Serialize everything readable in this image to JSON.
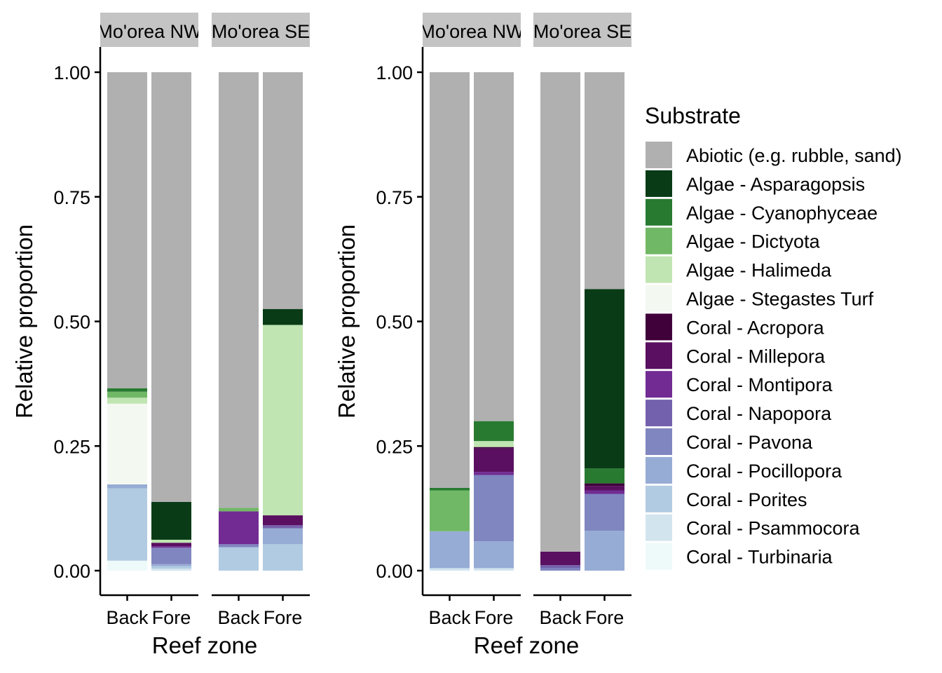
{
  "chart_data": {
    "type": "bar",
    "stacked": true,
    "xlabel": "Reef zone",
    "ylabel": "Relative proportion",
    "ylim": [
      0,
      1
    ],
    "yticks": [
      "0.00",
      "0.25",
      "0.50",
      "0.75",
      "1.00"
    ],
    "categories": [
      "Back",
      "Fore"
    ],
    "legend": {
      "title": "Substrate",
      "position": "right",
      "entries": [
        {
          "name": "Abiotic (e.g. rubble, sand)",
          "color": "#b0b0b0"
        },
        {
          "name": "Algae - Asparagopsis",
          "color": "#083b16"
        },
        {
          "name": "Algae - Cyanophyceae",
          "color": "#287a31"
        },
        {
          "name": "Algae - Dictyota",
          "color": "#71b866"
        },
        {
          "name": "Algae - Halimeda",
          "color": "#c0e5b2"
        },
        {
          "name": "Algae - Stegastes Turf",
          "color": "#f3f8f1"
        },
        {
          "name": "Coral - Acropora",
          "color": "#40003a"
        },
        {
          "name": "Coral - Millepora",
          "color": "#5a0f60"
        },
        {
          "name": "Coral - Montipora",
          "color": "#712b93"
        },
        {
          "name": "Coral - Napopora",
          "color": "#7461ad"
        },
        {
          "name": "Coral - Pavona",
          "color": "#8086c0"
        },
        {
          "name": "Coral - Pocillopora",
          "color": "#96acd4"
        },
        {
          "name": "Coral - Porites",
          "color": "#b1cbe2"
        },
        {
          "name": "Coral - Psammocora",
          "color": "#d2e5ef"
        },
        {
          "name": "Coral - Turbinaria",
          "color": "#eefaf9"
        }
      ]
    },
    "panels": [
      {
        "facets": [
          {
            "label": "Mo'orea NW",
            "bars": [
              {
                "category": "Back",
                "segments": [
                  {
                    "name": "Coral - Turbinaria",
                    "value": 0.02
                  },
                  {
                    "name": "Coral - Porites",
                    "value": 0.145
                  },
                  {
                    "name": "Coral - Pocillopora",
                    "value": 0.008
                  },
                  {
                    "name": "Algae - Stegastes Turf",
                    "value": 0.162
                  },
                  {
                    "name": "Algae - Halimeda",
                    "value": 0.012
                  },
                  {
                    "name": "Algae - Dictyota",
                    "value": 0.012
                  },
                  {
                    "name": "Algae - Cyanophyceae",
                    "value": 0.007
                  },
                  {
                    "name": "Abiotic (e.g. rubble, sand)",
                    "value": 0.634
                  }
                ]
              },
              {
                "category": "Fore",
                "segments": [
                  {
                    "name": "Coral - Psammocora",
                    "value": 0.004
                  },
                  {
                    "name": "Coral - Porites",
                    "value": 0.005
                  },
                  {
                    "name": "Coral - Pocillopora",
                    "value": 0.004
                  },
                  {
                    "name": "Coral - Pavona",
                    "value": 0.033
                  },
                  {
                    "name": "Coral - Montipora",
                    "value": 0.003
                  },
                  {
                    "name": "Coral - Millepora",
                    "value": 0.007
                  },
                  {
                    "name": "Algae - Halimeda",
                    "value": 0.006
                  },
                  {
                    "name": "Algae - Asparagopsis",
                    "value": 0.076
                  },
                  {
                    "name": "Abiotic (e.g. rubble, sand)",
                    "value": 0.862
                  }
                ]
              }
            ]
          },
          {
            "label": "Mo'orea SE",
            "bars": [
              {
                "category": "Back",
                "segments": [
                  {
                    "name": "Coral - Porites",
                    "value": 0.047
                  },
                  {
                    "name": "Coral - Pavona",
                    "value": 0.006
                  },
                  {
                    "name": "Coral - Montipora",
                    "value": 0.066
                  },
                  {
                    "name": "Algae - Dictyota",
                    "value": 0.007
                  },
                  {
                    "name": "Abiotic (e.g. rubble, sand)",
                    "value": 0.874
                  }
                ]
              },
              {
                "category": "Fore",
                "segments": [
                  {
                    "name": "Coral - Porites",
                    "value": 0.053
                  },
                  {
                    "name": "Coral - Pocillopora",
                    "value": 0.032
                  },
                  {
                    "name": "Coral - Napopora",
                    "value": 0.006
                  },
                  {
                    "name": "Coral - Millepora",
                    "value": 0.02
                  },
                  {
                    "name": "Algae - Halimeda",
                    "value": 0.382
                  },
                  {
                    "name": "Algae - Asparagopsis",
                    "value": 0.032
                  },
                  {
                    "name": "Abiotic (e.g. rubble, sand)",
                    "value": 0.475
                  }
                ]
              }
            ]
          }
        ]
      },
      {
        "facets": [
          {
            "label": "Mo'orea NW",
            "bars": [
              {
                "category": "Back",
                "segments": [
                  {
                    "name": "Coral - Psammocora",
                    "value": 0.005
                  },
                  {
                    "name": "Coral - Pocillopora",
                    "value": 0.074
                  },
                  {
                    "name": "Algae - Dictyota",
                    "value": 0.082
                  },
                  {
                    "name": "Algae - Cyanophyceae",
                    "value": 0.005
                  },
                  {
                    "name": "Abiotic (e.g. rubble, sand)",
                    "value": 0.834
                  }
                ]
              },
              {
                "category": "Fore",
                "segments": [
                  {
                    "name": "Coral - Psammocora",
                    "value": 0.005
                  },
                  {
                    "name": "Coral - Pocillopora",
                    "value": 0.054
                  },
                  {
                    "name": "Coral - Pavona",
                    "value": 0.133
                  },
                  {
                    "name": "Coral - Montipora",
                    "value": 0.006
                  },
                  {
                    "name": "Coral - Millepora",
                    "value": 0.047
                  },
                  {
                    "name": "Coral - Acropora",
                    "value": 0.003
                  },
                  {
                    "name": "Algae - Halimeda",
                    "value": 0.012
                  },
                  {
                    "name": "Algae - Cyanophyceae",
                    "value": 0.04
                  },
                  {
                    "name": "Abiotic (e.g. rubble, sand)",
                    "value": 0.7
                  }
                ]
              }
            ]
          },
          {
            "label": "Mo'orea SE",
            "bars": [
              {
                "category": "Back",
                "segments": [
                  {
                    "name": "Coral - Pavona",
                    "value": 0.005
                  },
                  {
                    "name": "Coral - Napopora",
                    "value": 0.006
                  },
                  {
                    "name": "Coral - Millepora",
                    "value": 0.027
                  },
                  {
                    "name": "Abiotic (e.g. rubble, sand)",
                    "value": 0.962
                  }
                ]
              },
              {
                "category": "Fore",
                "segments": [
                  {
                    "name": "Coral - Pocillopora",
                    "value": 0.08
                  },
                  {
                    "name": "Coral - Pavona",
                    "value": 0.074
                  },
                  {
                    "name": "Coral - Montipora",
                    "value": 0.007
                  },
                  {
                    "name": "Coral - Millepora",
                    "value": 0.009
                  },
                  {
                    "name": "Coral - Acropora",
                    "value": 0.005
                  },
                  {
                    "name": "Algae - Cyanophyceae",
                    "value": 0.03
                  },
                  {
                    "name": "Algae - Asparagopsis",
                    "value": 0.36
                  },
                  {
                    "name": "Abiotic (e.g. rubble, sand)",
                    "value": 0.435
                  }
                ]
              }
            ]
          }
        ]
      }
    ]
  }
}
